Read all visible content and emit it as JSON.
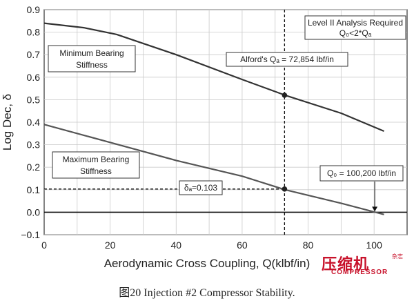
{
  "chart_data": {
    "type": "line",
    "xlabel": "Aerodynamic Cross Coupling, Q(klbf/in)",
    "ylabel": "Log Dec, δ",
    "xlim": [
      0,
      110
    ],
    "ylim": [
      -0.1,
      0.9
    ],
    "x_ticks": [
      "0",
      "20",
      "40",
      "60",
      "80",
      "100"
    ],
    "y_ticks": [
      "−0.1",
      "0.0",
      "0.1",
      "0.2",
      "0.3",
      "0.4",
      "0.5",
      "0.6",
      "0.7",
      "0.8",
      "0.9"
    ],
    "grid": true,
    "series": [
      {
        "name": "Minimum Bearing Stiffness",
        "color": "#333333",
        "x": [
          0,
          12,
          22,
          40,
          60,
          73,
          90,
          103
        ],
        "y": [
          0.84,
          0.82,
          0.79,
          0.7,
          0.59,
          0.52,
          0.44,
          0.36
        ]
      },
      {
        "name": "Maximum Bearing Stiffness",
        "color": "#555555",
        "x": [
          0,
          20,
          40,
          60,
          73,
          90,
          103
        ],
        "y": [
          0.39,
          0.31,
          0.23,
          0.16,
          0.1,
          0.04,
          -0.01
        ]
      }
    ],
    "annotations": {
      "level_box": [
        "Level II Analysis Required",
        "Q₀<2*Qₐ"
      ],
      "alford_label": "Alford's Qₐ = 72,854 lbf/in",
      "delta_label": "δₐ=0.103",
      "q0_label": "Q₀ = 100,200 lbf/in"
    },
    "markers": [
      {
        "x": 72.854,
        "y": 0.52
      },
      {
        "x": 72.854,
        "y": 0.103
      }
    ],
    "reference_lines": {
      "vertical_x": 72.854,
      "horizontal_y": 0.103,
      "zero_line_y": 0.0
    },
    "arrow_x": 100.2
  },
  "caption": "图20  Injection #2 Compressor Stability.",
  "watermark": {
    "cn": "压缩机",
    "en": "COMPRESSOR",
    "small": "杂志"
  }
}
